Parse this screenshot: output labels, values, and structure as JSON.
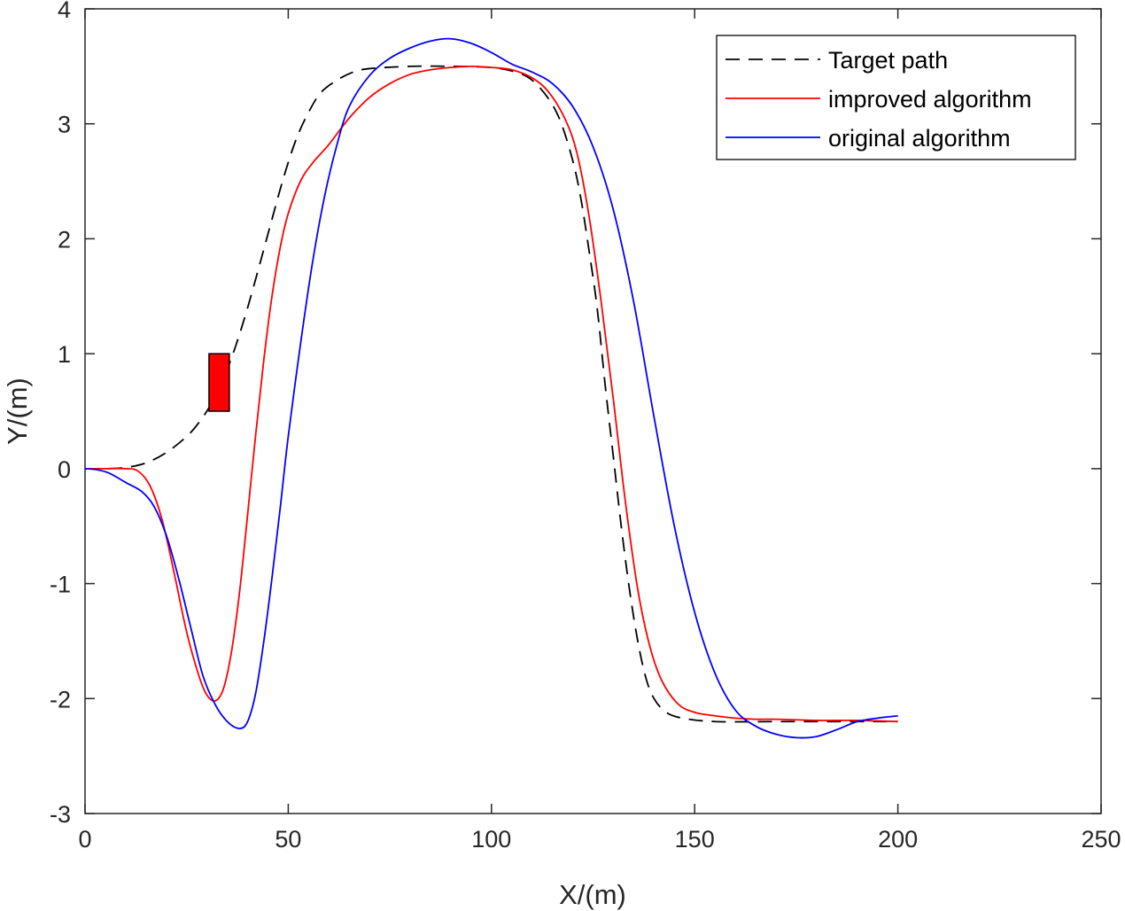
{
  "chart_data": {
    "type": "line",
    "title": "",
    "xlabel": "X/(m)",
    "ylabel": "Y/(m)",
    "xlim": [
      0,
      250
    ],
    "ylim": [
      -3,
      4
    ],
    "xticks": [
      0,
      50,
      100,
      150,
      200,
      250
    ],
    "yticks": [
      -3,
      -2,
      -1,
      0,
      1,
      2,
      3,
      4
    ],
    "grid": false,
    "legend_position": "top-right",
    "obstacle": {
      "x": [
        30.5,
        35.5
      ],
      "y": [
        0.5,
        1.0
      ],
      "color": "#ff0000"
    },
    "series": [
      {
        "name": "Target path",
        "color": "#000000",
        "style": "dashed",
        "points": [
          [
            0,
            0
          ],
          [
            5,
            0
          ],
          [
            10,
            0.01
          ],
          [
            15,
            0.05
          ],
          [
            20,
            0.14
          ],
          [
            25,
            0.28
          ],
          [
            28,
            0.4
          ],
          [
            31,
            0.56
          ],
          [
            34,
            0.78
          ],
          [
            37,
            1.06
          ],
          [
            40,
            1.4
          ],
          [
            43,
            1.78
          ],
          [
            46,
            2.17
          ],
          [
            49,
            2.55
          ],
          [
            52,
            2.87
          ],
          [
            55,
            3.1
          ],
          [
            58,
            3.27
          ],
          [
            62,
            3.38
          ],
          [
            66,
            3.45
          ],
          [
            70,
            3.48
          ],
          [
            80,
            3.5
          ],
          [
            90,
            3.5
          ],
          [
            100,
            3.49
          ],
          [
            106,
            3.45
          ],
          [
            110,
            3.38
          ],
          [
            114,
            3.22
          ],
          [
            117,
            3.02
          ],
          [
            120,
            2.68
          ],
          [
            122,
            2.35
          ],
          [
            124,
            1.9
          ],
          [
            126,
            1.4
          ],
          [
            128,
            0.72
          ],
          [
            130,
            0.1
          ],
          [
            132,
            -0.52
          ],
          [
            134,
            -1.06
          ],
          [
            136,
            -1.5
          ],
          [
            138,
            -1.82
          ],
          [
            140,
            -2.0
          ],
          [
            143,
            -2.12
          ],
          [
            147,
            -2.17
          ],
          [
            155,
            -2.2
          ],
          [
            170,
            -2.2
          ],
          [
            185,
            -2.2
          ],
          [
            200,
            -2.2
          ]
        ]
      },
      {
        "name": "improved algorithm",
        "color": "#ff0000",
        "style": "solid",
        "points": [
          [
            0,
            0
          ],
          [
            5,
            0
          ],
          [
            10,
            0
          ],
          [
            13,
            -0.02
          ],
          [
            16,
            -0.15
          ],
          [
            19,
            -0.45
          ],
          [
            22,
            -0.92
          ],
          [
            25,
            -1.42
          ],
          [
            28,
            -1.8
          ],
          [
            30,
            -1.97
          ],
          [
            32,
            -2.02
          ],
          [
            34,
            -1.92
          ],
          [
            36,
            -1.6
          ],
          [
            38,
            -1.08
          ],
          [
            40,
            -0.4
          ],
          [
            42,
            0.3
          ],
          [
            44,
            0.95
          ],
          [
            46,
            1.5
          ],
          [
            48,
            1.92
          ],
          [
            50,
            2.22
          ],
          [
            53,
            2.5
          ],
          [
            56,
            2.66
          ],
          [
            60,
            2.82
          ],
          [
            65,
            3.05
          ],
          [
            70,
            3.23
          ],
          [
            75,
            3.35
          ],
          [
            80,
            3.43
          ],
          [
            85,
            3.47
          ],
          [
            90,
            3.49
          ],
          [
            95,
            3.5
          ],
          [
            100,
            3.49
          ],
          [
            105,
            3.47
          ],
          [
            110,
            3.4
          ],
          [
            114,
            3.28
          ],
          [
            118,
            3.05
          ],
          [
            121,
            2.75
          ],
          [
            124,
            2.2
          ],
          [
            127,
            1.45
          ],
          [
            130,
            0.6
          ],
          [
            133,
            -0.3
          ],
          [
            136,
            -1.05
          ],
          [
            139,
            -1.55
          ],
          [
            142,
            -1.85
          ],
          [
            146,
            -2.05
          ],
          [
            150,
            -2.12
          ],
          [
            155,
            -2.15
          ],
          [
            160,
            -2.17
          ],
          [
            165,
            -2.18
          ],
          [
            170,
            -2.18
          ],
          [
            180,
            -2.19
          ],
          [
            190,
            -2.19
          ],
          [
            200,
            -2.2
          ]
        ]
      },
      {
        "name": "original algorithm",
        "color": "#0000ff",
        "style": "solid",
        "points": [
          [
            0,
            0
          ],
          [
            3,
            -0.01
          ],
          [
            6,
            -0.04
          ],
          [
            10,
            -0.12
          ],
          [
            14,
            -0.2
          ],
          [
            17,
            -0.33
          ],
          [
            20,
            -0.58
          ],
          [
            23,
            -0.95
          ],
          [
            26,
            -1.38
          ],
          [
            29,
            -1.8
          ],
          [
            32,
            -2.05
          ],
          [
            35,
            -2.2
          ],
          [
            38,
            -2.26
          ],
          [
            40,
            -2.2
          ],
          [
            42,
            -1.95
          ],
          [
            44,
            -1.5
          ],
          [
            46,
            -0.95
          ],
          [
            48,
            -0.35
          ],
          [
            50,
            0.28
          ],
          [
            53,
            1.08
          ],
          [
            56,
            1.8
          ],
          [
            59,
            2.38
          ],
          [
            62,
            2.82
          ],
          [
            65,
            3.15
          ],
          [
            70,
            3.42
          ],
          [
            75,
            3.57
          ],
          [
            80,
            3.66
          ],
          [
            85,
            3.72
          ],
          [
            90,
            3.74
          ],
          [
            95,
            3.7
          ],
          [
            100,
            3.62
          ],
          [
            105,
            3.52
          ],
          [
            110,
            3.45
          ],
          [
            115,
            3.35
          ],
          [
            120,
            3.15
          ],
          [
            125,
            2.8
          ],
          [
            130,
            2.25
          ],
          [
            135,
            1.45
          ],
          [
            140,
            0.45
          ],
          [
            145,
            -0.5
          ],
          [
            150,
            -1.25
          ],
          [
            155,
            -1.78
          ],
          [
            160,
            -2.1
          ],
          [
            165,
            -2.24
          ],
          [
            170,
            -2.31
          ],
          [
            175,
            -2.34
          ],
          [
            180,
            -2.33
          ],
          [
            185,
            -2.27
          ],
          [
            190,
            -2.2
          ],
          [
            195,
            -2.17
          ],
          [
            200,
            -2.15
          ]
        ]
      }
    ]
  }
}
